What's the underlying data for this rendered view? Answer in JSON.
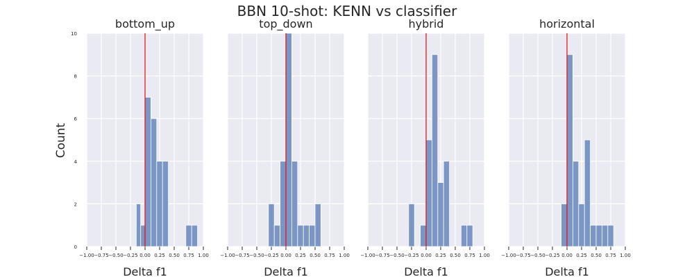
{
  "figure": {
    "suptitle": "BBN 10-shot: KENN vs classifier",
    "ylabel": "Count"
  },
  "colors": {
    "background": "#ffffff",
    "panel": "#eaeaf2",
    "grid": "#ffffff",
    "bar": "#7b95c4",
    "bar_edge": "#ffffff",
    "zero_line": "#e0191c",
    "text": "#262626"
  },
  "chart_data": [
    {
      "type": "bar",
      "title": "bottom_up",
      "xlabel": "Delta f1",
      "ylabel": "Count",
      "xlim": [
        -1.0,
        1.0
      ],
      "ylim": [
        0,
        10
      ],
      "xticks": [
        "-1.00",
        "-0.75",
        "-0.50",
        "-0.25",
        "0.00",
        "0.25",
        "0.50",
        "0.75",
        "1.00"
      ],
      "yticks": [
        "0",
        "2",
        "4",
        "6",
        "8",
        "10"
      ],
      "vline_x": 0,
      "bins": [
        {
          "x0": -0.15,
          "x1": -0.075,
          "count": 2
        },
        {
          "x0": -0.075,
          "x1": 0.0,
          "count": 1
        },
        {
          "x0": 0.0,
          "x1": 0.1,
          "count": 7
        },
        {
          "x0": 0.1,
          "x1": 0.2,
          "count": 6
        },
        {
          "x0": 0.2,
          "x1": 0.3,
          "count": 4
        },
        {
          "x0": 0.3,
          "x1": 0.4,
          "count": 4
        },
        {
          "x0": 0.7,
          "x1": 0.8,
          "count": 1
        },
        {
          "x0": 0.8,
          "x1": 0.9,
          "count": 1
        }
      ]
    },
    {
      "type": "bar",
      "title": "top_down",
      "xlabel": "Delta f1",
      "xlim": [
        -1.0,
        1.0
      ],
      "ylim": [
        0,
        10
      ],
      "xticks": [
        "-1.00",
        "-0.75",
        "-0.50",
        "-0.25",
        "0.00",
        "0.25",
        "0.50",
        "0.75",
        "1.00"
      ],
      "vline_x": 0,
      "bins": [
        {
          "x0": -0.3,
          "x1": -0.2,
          "count": 2
        },
        {
          "x0": -0.2,
          "x1": -0.1,
          "count": 1
        },
        {
          "x0": -0.1,
          "x1": 0.0,
          "count": 4
        },
        {
          "x0": 0.0,
          "x1": 0.1,
          "count": 10
        },
        {
          "x0": 0.1,
          "x1": 0.2,
          "count": 4
        },
        {
          "x0": 0.2,
          "x1": 0.3,
          "count": 1
        },
        {
          "x0": 0.3,
          "x1": 0.4,
          "count": 1
        },
        {
          "x0": 0.4,
          "x1": 0.5,
          "count": 1
        },
        {
          "x0": 0.5,
          "x1": 0.6,
          "count": 2
        }
      ]
    },
    {
      "type": "bar",
      "title": "hybrid",
      "xlabel": "Delta f1",
      "xlim": [
        -1.0,
        1.0
      ],
      "ylim": [
        0,
        10
      ],
      "xticks": [
        "-1.00",
        "-0.75",
        "-0.50",
        "-0.25",
        "0.00",
        "0.25",
        "0.50",
        "0.75",
        "1.00"
      ],
      "vline_x": 0,
      "bins": [
        {
          "x0": -0.3,
          "x1": -0.2,
          "count": 2
        },
        {
          "x0": -0.1,
          "x1": 0.0,
          "count": 1
        },
        {
          "x0": 0.0,
          "x1": 0.1,
          "count": 5
        },
        {
          "x0": 0.1,
          "x1": 0.2,
          "count": 9
        },
        {
          "x0": 0.2,
          "x1": 0.3,
          "count": 3
        },
        {
          "x0": 0.3,
          "x1": 0.4,
          "count": 4
        },
        {
          "x0": 0.6,
          "x1": 0.7,
          "count": 1
        },
        {
          "x0": 0.7,
          "x1": 0.8,
          "count": 1
        }
      ]
    },
    {
      "type": "bar",
      "title": "horizontal",
      "xlabel": "Delta f1",
      "xlim": [
        -1.0,
        1.0
      ],
      "ylim": [
        0,
        10
      ],
      "xticks": [
        "-1.00",
        "-0.75",
        "-0.50",
        "-0.25",
        "0.00",
        "0.25",
        "0.50",
        "0.75",
        "1.00"
      ],
      "vline_x": 0,
      "bins": [
        {
          "x0": -0.1,
          "x1": 0.0,
          "count": 2
        },
        {
          "x0": 0.0,
          "x1": 0.1,
          "count": 9
        },
        {
          "x0": 0.1,
          "x1": 0.2,
          "count": 4
        },
        {
          "x0": 0.2,
          "x1": 0.3,
          "count": 2
        },
        {
          "x0": 0.3,
          "x1": 0.4,
          "count": 5
        },
        {
          "x0": 0.4,
          "x1": 0.5,
          "count": 1
        },
        {
          "x0": 0.5,
          "x1": 0.6,
          "count": 1
        },
        {
          "x0": 0.6,
          "x1": 0.7,
          "count": 1
        },
        {
          "x0": 0.7,
          "x1": 0.8,
          "count": 1
        }
      ]
    }
  ]
}
